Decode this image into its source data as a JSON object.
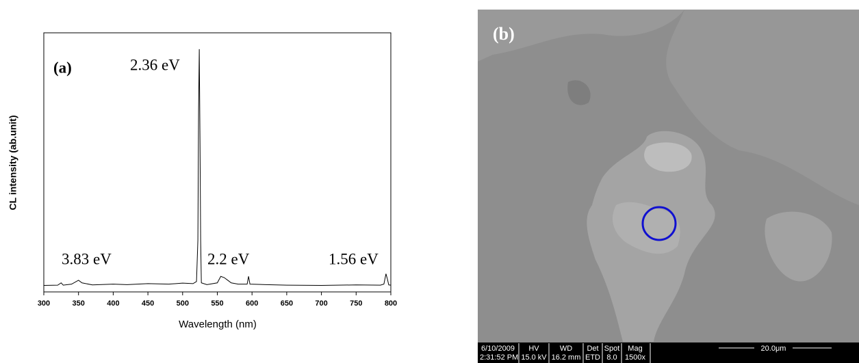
{
  "chart_data": {
    "type": "line",
    "xlabel": "Wavelength (nm)",
    "ylabel": "CL intensity (ab.unit)",
    "annotations": [
      "(a)",
      "2.36 eV",
      "3.83 eV",
      "2.2 eV",
      "1.56 eV"
    ],
    "color": "#000000",
    "x": [
      300,
      320,
      325,
      328,
      340,
      350,
      355,
      370,
      400,
      420,
      450,
      480,
      500,
      515,
      520,
      522,
      523,
      524,
      525,
      526,
      527,
      535,
      550,
      555,
      560,
      565,
      570,
      580,
      593,
      595,
      597,
      620,
      650,
      700,
      750,
      785,
      790,
      793,
      795,
      797,
      800
    ],
    "values": [
      2.5,
      2.6,
      3.5,
      2.6,
      3,
      4.5,
      3.5,
      2.7,
      3,
      2.8,
      3.2,
      3,
      3.4,
      3.2,
      4,
      20,
      70,
      93.7,
      60,
      20,
      3.5,
      2.8,
      3.5,
      6,
      5.5,
      4.5,
      3.5,
      3,
      3,
      6,
      3,
      2.8,
      2.6,
      2.5,
      2.7,
      2.6,
      3,
      7,
      5,
      2.7,
      2.6
    ],
    "xlim": [
      300,
      800
    ],
    "xticks": [
      300,
      350,
      400,
      450,
      500,
      550,
      600,
      650,
      700,
      750,
      800
    ],
    "ylim": [
      0,
      100
    ]
  },
  "image": {
    "label": "(b)",
    "date": "6/10/2009",
    "time": "2:31:52 PM",
    "columns": [
      {
        "header": "HV",
        "value": "15.0 kV"
      },
      {
        "header": "WD",
        "value": "16.2 mm"
      },
      {
        "header": "Det",
        "value": "ETD"
      },
      {
        "header": "Spot",
        "value": "8.0"
      },
      {
        "header": "Mag",
        "value": "1500x"
      }
    ],
    "scale_bar": "20.0μm"
  }
}
